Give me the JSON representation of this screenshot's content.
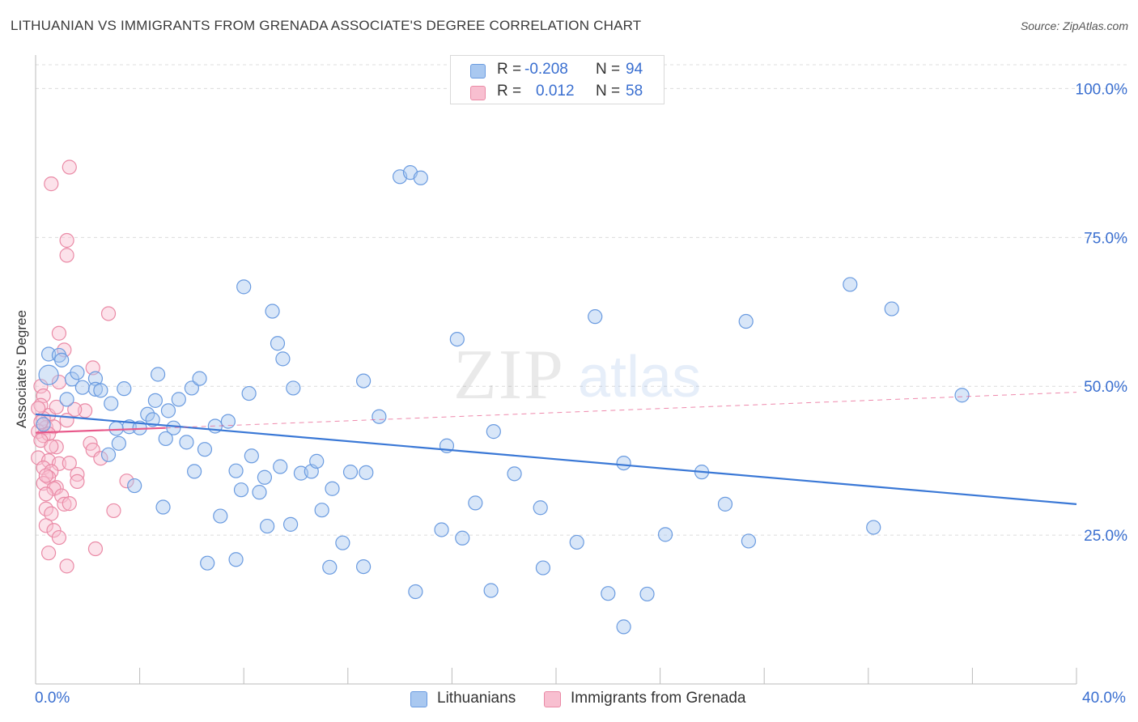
{
  "title": "LITHUANIAN VS IMMIGRANTS FROM GRENADA ASSOCIATE'S DEGREE CORRELATION CHART",
  "source": "Source: ZipAtlas.com",
  "watermark": {
    "zip": "ZIP",
    "atlas": "atlas"
  },
  "legend_top": [
    {
      "r_label": "R =",
      "r_value": "-0.208",
      "n_label": "N =",
      "n_value": "94",
      "color": "#a9c8f0",
      "stroke": "#6a9be0"
    },
    {
      "r_label": "R =",
      "r_value": "0.012",
      "n_label": "N =",
      "n_value": "58",
      "color": "#f8bfd0",
      "stroke": "#ea8aa6"
    }
  ],
  "legend_bottom": [
    {
      "label": "Lithuanians",
      "color": "#a9c8f0",
      "stroke": "#6a9be0"
    },
    {
      "label": "Immigrants from Grenada",
      "color": "#f8bfd0",
      "stroke": "#ea8aa6"
    }
  ],
  "colors": {
    "blue": "#3a78d6",
    "pink": "#e8588a",
    "axis_text": "#3a6fd0",
    "grid": "#dcdcdc"
  },
  "chart_data": {
    "type": "scatter",
    "title": "LITHUANIAN VS IMMIGRANTS FROM GRENADA ASSOCIATE'S DEGREE CORRELATION CHART",
    "xlabel": "",
    "ylabel": "Associate's Degree",
    "xlim": [
      0,
      40
    ],
    "ylim": [
      0,
      104
    ],
    "x_tick_labels": [
      "0.0%",
      "40.0%"
    ],
    "y_ticks": [
      25,
      50,
      75,
      100
    ],
    "y_tick_labels": [
      "25.0%",
      "50.0%",
      "75.0%",
      "100.0%"
    ],
    "series": [
      {
        "name": "Lithuanians",
        "r": -0.208,
        "n": 94,
        "trend": {
          "x": [
            0,
            40
          ],
          "y": [
            45.3,
            30.2
          ],
          "style": "solid"
        },
        "points": [
          [
            0.5,
            51.9
          ],
          [
            0.5,
            55.4
          ],
          [
            0.9,
            55.2
          ],
          [
            1.0,
            54.4
          ],
          [
            1.4,
            51.2
          ],
          [
            1.6,
            52.3
          ],
          [
            1.8,
            49.8
          ],
          [
            2.3,
            51.3
          ],
          [
            2.3,
            49.5
          ],
          [
            2.5,
            49.3
          ],
          [
            2.9,
            47.1
          ],
          [
            3.4,
            49.6
          ],
          [
            3.6,
            43.2
          ],
          [
            3.1,
            42.9
          ],
          [
            3.2,
            40.4
          ],
          [
            3.8,
            33.3
          ],
          [
            4.0,
            43.0
          ],
          [
            4.3,
            45.3
          ],
          [
            4.5,
            44.4
          ],
          [
            4.6,
            47.6
          ],
          [
            4.7,
            52.0
          ],
          [
            4.9,
            29.7
          ],
          [
            5.1,
            45.9
          ],
          [
            5.3,
            43.0
          ],
          [
            5.5,
            47.8
          ],
          [
            5.8,
            40.6
          ],
          [
            6.0,
            49.7
          ],
          [
            6.3,
            51.3
          ],
          [
            6.1,
            35.7
          ],
          [
            6.5,
            39.4
          ],
          [
            6.9,
            43.3
          ],
          [
            7.1,
            28.2
          ],
          [
            7.4,
            44.1
          ],
          [
            6.6,
            20.3
          ],
          [
            7.7,
            35.8
          ],
          [
            7.9,
            32.6
          ],
          [
            7.7,
            20.9
          ],
          [
            8.0,
            66.7
          ],
          [
            8.2,
            48.8
          ],
          [
            8.3,
            38.3
          ],
          [
            8.6,
            32.2
          ],
          [
            8.8,
            34.7
          ],
          [
            8.9,
            26.5
          ],
          [
            9.1,
            62.6
          ],
          [
            9.3,
            57.2
          ],
          [
            9.5,
            54.6
          ],
          [
            9.4,
            36.5
          ],
          [
            9.8,
            26.8
          ],
          [
            9.9,
            49.7
          ],
          [
            10.2,
            35.4
          ],
          [
            10.6,
            35.7
          ],
          [
            10.8,
            37.4
          ],
          [
            11.0,
            29.2
          ],
          [
            11.3,
            19.6
          ],
          [
            11.4,
            32.8
          ],
          [
            11.8,
            23.7
          ],
          [
            12.1,
            35.6
          ],
          [
            12.6,
            19.7
          ],
          [
            12.6,
            50.9
          ],
          [
            12.7,
            35.5
          ],
          [
            13.2,
            44.9
          ],
          [
            14.0,
            85.2
          ],
          [
            14.4,
            85.9
          ],
          [
            14.8,
            85.0
          ],
          [
            14.6,
            15.5
          ],
          [
            15.6,
            25.9
          ],
          [
            15.8,
            40.0
          ],
          [
            16.2,
            57.9
          ],
          [
            16.4,
            24.5
          ],
          [
            16.9,
            30.4
          ],
          [
            17.5,
            15.7
          ],
          [
            17.6,
            42.4
          ],
          [
            18.4,
            35.3
          ],
          [
            19.4,
            29.6
          ],
          [
            19.5,
            19.5
          ],
          [
            20.8,
            23.8
          ],
          [
            21.5,
            61.7
          ],
          [
            22.0,
            15.2
          ],
          [
            22.6,
            9.6
          ],
          [
            22.6,
            37.1
          ],
          [
            23.5,
            15.1
          ],
          [
            24.2,
            25.1
          ],
          [
            25.6,
            35.6
          ],
          [
            26.5,
            30.2
          ],
          [
            27.3,
            60.9
          ],
          [
            27.4,
            24.0
          ],
          [
            31.3,
            67.1
          ],
          [
            32.2,
            26.3
          ],
          [
            32.9,
            63.0
          ],
          [
            35.6,
            48.5
          ],
          [
            0.3,
            43.6
          ],
          [
            1.2,
            47.8
          ],
          [
            2.8,
            38.5
          ],
          [
            5.0,
            41.2
          ]
        ]
      },
      {
        "name": "Immigrants from Grenada",
        "r": 0.012,
        "n": 58,
        "trend": {
          "x": [
            0,
            5.0
          ],
          "y": [
            42.2,
            43.0
          ],
          "style": "solid",
          "ext_x": [
            5.0,
            40
          ],
          "ext_y": [
            43.0,
            49.0
          ],
          "ext_style": "dashed"
        },
        "points": [
          [
            1.3,
            86.8
          ],
          [
            0.6,
            84.0
          ],
          [
            1.2,
            74.5
          ],
          [
            1.2,
            72.0
          ],
          [
            2.8,
            62.2
          ],
          [
            0.9,
            58.9
          ],
          [
            1.1,
            56.1
          ],
          [
            2.2,
            53.1
          ],
          [
            0.2,
            50.0
          ],
          [
            0.9,
            50.7
          ],
          [
            0.3,
            48.4
          ],
          [
            0.2,
            46.8
          ],
          [
            0.5,
            45.1
          ],
          [
            1.9,
            45.9
          ],
          [
            0.3,
            44.6
          ],
          [
            1.5,
            46.1
          ],
          [
            0.8,
            46.5
          ],
          [
            1.2,
            44.3
          ],
          [
            0.4,
            43.1
          ],
          [
            0.7,
            43.2
          ],
          [
            0.1,
            42.4
          ],
          [
            0.3,
            41.7
          ],
          [
            0.5,
            42.0
          ],
          [
            0.2,
            40.9
          ],
          [
            0.8,
            39.8
          ],
          [
            0.6,
            39.9
          ],
          [
            2.1,
            40.4
          ],
          [
            2.2,
            39.3
          ],
          [
            0.1,
            38.0
          ],
          [
            0.5,
            37.5
          ],
          [
            0.9,
            37.0
          ],
          [
            1.3,
            37.1
          ],
          [
            2.5,
            37.9
          ],
          [
            0.3,
            36.3
          ],
          [
            0.6,
            35.7
          ],
          [
            0.5,
            34.7
          ],
          [
            1.6,
            35.2
          ],
          [
            0.3,
            33.7
          ],
          [
            0.8,
            33.0
          ],
          [
            0.7,
            32.8
          ],
          [
            1.6,
            34.0
          ],
          [
            0.4,
            31.9
          ],
          [
            1.0,
            31.6
          ],
          [
            1.1,
            30.2
          ],
          [
            1.3,
            30.3
          ],
          [
            0.4,
            29.4
          ],
          [
            0.6,
            28.6
          ],
          [
            3.0,
            29.1
          ],
          [
            0.4,
            26.6
          ],
          [
            0.7,
            25.8
          ],
          [
            0.9,
            24.6
          ],
          [
            2.3,
            22.7
          ],
          [
            0.5,
            22.0
          ],
          [
            1.2,
            19.8
          ],
          [
            3.5,
            34.1
          ],
          [
            0.2,
            44.0
          ],
          [
            0.1,
            46.3
          ],
          [
            0.4,
            35.0
          ]
        ]
      }
    ]
  }
}
